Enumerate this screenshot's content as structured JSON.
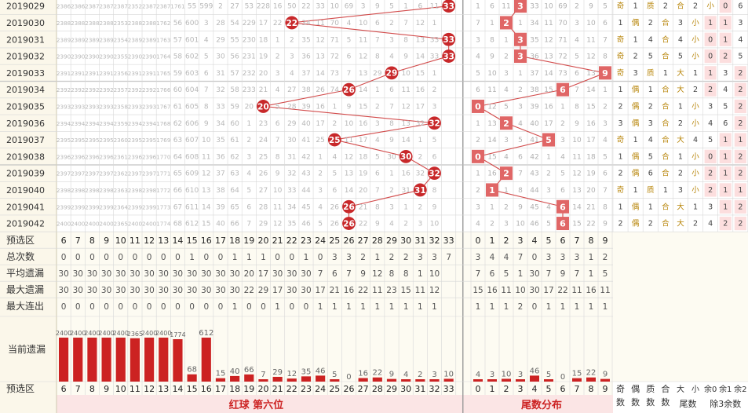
{
  "columns": {
    "red": [
      "6",
      "7",
      "8",
      "9",
      "10",
      "11",
      "12",
      "13",
      "14",
      "15",
      "16",
      "17",
      "18",
      "19",
      "20",
      "21",
      "22",
      "23",
      "24",
      "25",
      "26",
      "27",
      "28",
      "29",
      "30",
      "31",
      "32",
      "33"
    ],
    "tail": [
      "0",
      "1",
      "2",
      "3",
      "4",
      "5",
      "6",
      "7",
      "8",
      "9"
    ],
    "extra_bottom": [
      "奇数",
      "偶数",
      "质数",
      "合数",
      "大",
      "小",
      "余0",
      "余1",
      "余2"
    ],
    "extra_group_tail": "尾数",
    "extra_group_mod3": "除3余数"
  },
  "rows": [
    {
      "period": "2019029",
      "red_hit": 33,
      "tail_hit": 3,
      "red_omit": [
        "2386",
        "2386",
        "2387",
        "2387",
        "2387",
        "2352",
        "2387",
        "2387",
        "1761",
        "55",
        "599",
        "2",
        "27",
        "53",
        "228",
        "16",
        "50",
        "22",
        "33",
        "10",
        "69",
        "3",
        "9",
        "5",
        "1",
        "6",
        "11",
        "33"
      ],
      "tail_omit": [
        "1",
        "6",
        "11",
        "3",
        "33",
        "10",
        "69",
        "2",
        "9",
        "5"
      ],
      "stats": [
        "奇",
        "1",
        "质",
        "2",
        "合",
        "2",
        "小",
        "0",
        "6",
        "2"
      ]
    },
    {
      "period": "2019030",
      "red_hit": 22,
      "tail_hit": 2,
      "red_omit": [
        "2388",
        "2388",
        "2388",
        "2388",
        "2353",
        "2388",
        "2388",
        "1762",
        "56",
        "600",
        "3",
        "28",
        "54",
        "229",
        "17",
        "22",
        "1",
        "34",
        "11",
        "70",
        "4",
        "10",
        "6",
        "2",
        "7",
        "12",
        "1"
      ],
      "tail_omit": [
        "7",
        "1",
        "2",
        "1",
        "34",
        "11",
        "70",
        "3",
        "10",
        "6"
      ],
      "stats": [
        "1",
        "偶",
        "2",
        "合",
        "3",
        "小",
        "1",
        "1",
        "3"
      ]
    },
    {
      "period": "2019031",
      "red_hit": 33,
      "tail_hit": 3,
      "red_omit": [
        "2389",
        "2389",
        "2389",
        "2389",
        "2354",
        "2389",
        "2389",
        "1763",
        "57",
        "601",
        "4",
        "29",
        "55",
        "230",
        "18",
        "1",
        "2",
        "35",
        "12",
        "71",
        "5",
        "11",
        "7",
        "3",
        "8",
        "13",
        "33"
      ],
      "tail_omit": [
        "3",
        "8",
        "1",
        "3",
        "35",
        "12",
        "71",
        "4",
        "11",
        "7"
      ],
      "stats": [
        "奇",
        "1",
        "4",
        "合",
        "4",
        "小",
        "0",
        "1",
        "4"
      ]
    },
    {
      "period": "2019032",
      "red_hit": 33,
      "tail_hit": 3,
      "red_omit": [
        "2390",
        "2390",
        "2390",
        "2390",
        "2355",
        "2390",
        "2390",
        "1764",
        "58",
        "602",
        "5",
        "30",
        "56",
        "231",
        "19",
        "2",
        "3",
        "36",
        "13",
        "72",
        "6",
        "12",
        "8",
        "4",
        "9",
        "14",
        "33"
      ],
      "tail_omit": [
        "4",
        "9",
        "2",
        "3",
        "36",
        "13",
        "72",
        "5",
        "12",
        "8"
      ],
      "stats": [
        "奇",
        "2",
        "5",
        "合",
        "5",
        "小",
        "0",
        "2",
        "5"
      ]
    },
    {
      "period": "2019033",
      "red_hit": 29,
      "tail_hit": 9,
      "red_omit": [
        "2391",
        "2391",
        "2391",
        "2391",
        "2356",
        "2391",
        "2391",
        "1765",
        "59",
        "603",
        "6",
        "31",
        "57",
        "232",
        "20",
        "3",
        "4",
        "37",
        "14",
        "73",
        "7",
        "13",
        "29",
        "5",
        "10",
        "15",
        "1"
      ],
      "tail_omit": [
        "5",
        "10",
        "3",
        "1",
        "37",
        "14",
        "73",
        "6",
        "13",
        "9"
      ],
      "stats": [
        "奇",
        "3",
        "质",
        "1",
        "大",
        "1",
        "1",
        "3",
        "2"
      ]
    },
    {
      "period": "2019034",
      "red_hit": 26,
      "tail_hit": 6,
      "red_omit": [
        "2392",
        "2392",
        "2392",
        "2392",
        "2357",
        "2392",
        "2392",
        "1766",
        "60",
        "604",
        "7",
        "32",
        "58",
        "233",
        "21",
        "4",
        "27",
        "38",
        "26",
        "74",
        "8",
        "14",
        "1",
        "6",
        "11",
        "16",
        "2"
      ],
      "tail_omit": [
        "6",
        "11",
        "4",
        "2",
        "38",
        "15",
        "6",
        "7",
        "14",
        "1"
      ],
      "stats": [
        "1",
        "偶",
        "1",
        "合",
        "大",
        "2",
        "2",
        "4",
        "2"
      ]
    },
    {
      "period": "2019035",
      "red_hit": 20,
      "tail_hit": 0,
      "red_omit": [
        "2393",
        "2393",
        "2393",
        "2393",
        "2358",
        "2393",
        "2393",
        "1767",
        "61",
        "605",
        "8",
        "33",
        "59",
        "20",
        "22",
        "5",
        "28",
        "39",
        "16",
        "1",
        "9",
        "15",
        "2",
        "7",
        "12",
        "17",
        "3"
      ],
      "tail_omit": [
        "0",
        "12",
        "5",
        "3",
        "39",
        "16",
        "1",
        "8",
        "15",
        "2"
      ],
      "stats": [
        "2",
        "偶",
        "2",
        "合",
        "1",
        "小",
        "3",
        "5",
        "2"
      ]
    },
    {
      "period": "2019036",
      "red_hit": 32,
      "tail_hit": 2,
      "red_omit": [
        "2394",
        "2394",
        "2394",
        "2394",
        "2359",
        "2394",
        "2394",
        "1768",
        "62",
        "606",
        "9",
        "34",
        "60",
        "1",
        "23",
        "6",
        "29",
        "40",
        "17",
        "2",
        "10",
        "16",
        "3",
        "8",
        "13",
        "32",
        "4"
      ],
      "tail_omit": [
        "1",
        "13",
        "2",
        "4",
        "40",
        "17",
        "2",
        "9",
        "16",
        "3"
      ],
      "stats": [
        "3",
        "偶",
        "3",
        "合",
        "2",
        "小",
        "4",
        "6",
        "2"
      ]
    },
    {
      "period": "2019037",
      "red_hit": 25,
      "tail_hit": 5,
      "red_omit": [
        "2395",
        "2395",
        "2395",
        "2395",
        "2360",
        "2395",
        "2395",
        "1769",
        "63",
        "607",
        "10",
        "35",
        "61",
        "2",
        "24",
        "7",
        "30",
        "41",
        "25",
        "3",
        "11",
        "17",
        "4",
        "9",
        "14",
        "1",
        "5"
      ],
      "tail_omit": [
        "2",
        "14",
        "3",
        "5",
        "41",
        "5",
        "3",
        "10",
        "17",
        "4"
      ],
      "stats": [
        "奇",
        "1",
        "4",
        "合",
        "大",
        "4",
        "5",
        "1",
        "1"
      ]
    },
    {
      "period": "2019038",
      "red_hit": 30,
      "tail_hit": 0,
      "red_omit": [
        "2396",
        "2396",
        "2396",
        "2396",
        "2361",
        "2396",
        "2396",
        "1770",
        "64",
        "608",
        "11",
        "36",
        "62",
        "3",
        "25",
        "8",
        "31",
        "42",
        "1",
        "4",
        "12",
        "18",
        "5",
        "30",
        "15",
        "2",
        "6"
      ],
      "tail_omit": [
        "0",
        "15",
        "4",
        "6",
        "42",
        "1",
        "4",
        "11",
        "18",
        "5"
      ],
      "stats": [
        "1",
        "偶",
        "5",
        "合",
        "1",
        "小",
        "0",
        "1",
        "2"
      ]
    },
    {
      "period": "2019039",
      "red_hit": 32,
      "tail_hit": 2,
      "red_omit": [
        "2397",
        "2397",
        "2397",
        "2397",
        "2362",
        "2397",
        "2397",
        "1771",
        "65",
        "609",
        "12",
        "37",
        "63",
        "4",
        "26",
        "9",
        "32",
        "43",
        "2",
        "5",
        "13",
        "19",
        "6",
        "1",
        "16",
        "32",
        "7"
      ],
      "tail_omit": [
        "1",
        "16",
        "2",
        "7",
        "43",
        "2",
        "5",
        "12",
        "19",
        "6"
      ],
      "stats": [
        "2",
        "偶",
        "6",
        "合",
        "2",
        "小",
        "2",
        "1",
        "2"
      ]
    },
    {
      "period": "2019040",
      "red_hit": 31,
      "tail_hit": 1,
      "red_omit": [
        "2398",
        "2398",
        "2398",
        "2398",
        "2363",
        "2398",
        "2398",
        "1772",
        "66",
        "610",
        "13",
        "38",
        "64",
        "5",
        "27",
        "10",
        "33",
        "44",
        "3",
        "6",
        "14",
        "20",
        "7",
        "2",
        "31",
        "1",
        "8"
      ],
      "tail_omit": [
        "2",
        "1",
        "1",
        "8",
        "44",
        "3",
        "6",
        "13",
        "20",
        "7"
      ],
      "stats": [
        "奇",
        "1",
        "质",
        "1",
        "3",
        "小",
        "2",
        "1",
        "1"
      ]
    },
    {
      "period": "2019041",
      "red_hit": 26,
      "tail_hit": 6,
      "red_omit": [
        "2399",
        "2399",
        "2399",
        "2399",
        "2364",
        "2399",
        "2399",
        "1773",
        "67",
        "611",
        "14",
        "39",
        "65",
        "6",
        "28",
        "11",
        "34",
        "45",
        "4",
        "26",
        "15",
        "21",
        "8",
        "3",
        "1",
        "2",
        "9"
      ],
      "tail_omit": [
        "3",
        "1",
        "2",
        "9",
        "45",
        "4",
        "6",
        "14",
        "21",
        "8"
      ],
      "stats": [
        "1",
        "偶",
        "1",
        "合",
        "大",
        "1",
        "3",
        "1",
        "2"
      ]
    },
    {
      "period": "2019042",
      "red_hit": 26,
      "tail_hit": 6,
      "red_omit": [
        "2400",
        "2400",
        "2400",
        "2400",
        "2365",
        "2400",
        "2400",
        "1774",
        "68",
        "612",
        "15",
        "40",
        "66",
        "7",
        "29",
        "12",
        "35",
        "46",
        "5",
        "26",
        "16",
        "22",
        "9",
        "4",
        "2",
        "3",
        "10"
      ],
      "tail_omit": [
        "4",
        "2",
        "3",
        "10",
        "46",
        "5",
        "6",
        "15",
        "22",
        "9"
      ],
      "stats": [
        "2",
        "偶",
        "2",
        "合",
        "大",
        "2",
        "4",
        "2",
        "2"
      ]
    }
  ],
  "stat_rows": [
    {
      "label": "预选区",
      "values_kind": "header"
    },
    {
      "label": "总次数",
      "red": [
        "0",
        "0",
        "0",
        "0",
        "0",
        "0",
        "0",
        "0",
        "0",
        "1",
        "0",
        "0",
        "1",
        "1",
        "1",
        "0",
        "0",
        "1",
        "0",
        "3",
        "3",
        "2",
        "1",
        "2",
        "2",
        "3",
        "3",
        "7"
      ],
      "tail": [
        "3",
        "4",
        "4",
        "7",
        "0",
        "3",
        "3",
        "3",
        "1",
        "2"
      ]
    },
    {
      "label": "平均遗漏",
      "red": [
        "30",
        "30",
        "30",
        "30",
        "30",
        "30",
        "30",
        "30",
        "30",
        "30",
        "30",
        "30",
        "30",
        "20",
        "17",
        "30",
        "30",
        "30",
        "7",
        "6",
        "7",
        "9",
        "12",
        "8",
        "8",
        "1",
        "10",
        ""
      ],
      "tail": [
        "7",
        "6",
        "5",
        "1",
        "30",
        "7",
        "9",
        "7",
        "1",
        "5"
      ]
    },
    {
      "label": "最大遗漏",
      "red": [
        "30",
        "30",
        "30",
        "30",
        "30",
        "30",
        "30",
        "30",
        "30",
        "30",
        "30",
        "30",
        "30",
        "22",
        "29",
        "17",
        "30",
        "30",
        "17",
        "21",
        "16",
        "22",
        "11",
        "23",
        "15",
        "11",
        "12",
        ""
      ],
      "tail": [
        "15",
        "16",
        "11",
        "10",
        "30",
        "17",
        "22",
        "11",
        "16",
        "11"
      ]
    },
    {
      "label": "最大连出",
      "red": [
        "0",
        "0",
        "0",
        "0",
        "0",
        "0",
        "0",
        "0",
        "0",
        "0",
        "0",
        "0",
        "1",
        "0",
        "0",
        "1",
        "0",
        "0",
        "1",
        "1",
        "1",
        "1",
        "1",
        "1",
        "1",
        "1",
        "1",
        ""
      ],
      "tail": [
        "1",
        "1",
        "1",
        "2",
        "0",
        "1",
        "1",
        "1",
        "1",
        "1"
      ]
    }
  ],
  "current_omission_label": "当前遗漏",
  "chart_data": {
    "type": "bar",
    "title": "",
    "xlabel": "预选区",
    "ylabel": "当前遗漏",
    "categories": [
      "6",
      "7",
      "8",
      "9",
      "10",
      "11",
      "12",
      "13",
      "14",
      "15",
      "16",
      "17",
      "18",
      "19",
      "20",
      "21",
      "22",
      "23",
      "24",
      "25",
      "26",
      "27",
      "28",
      "29",
      "30",
      "31",
      "32",
      "33",
      "0",
      "1",
      "2",
      "3",
      "4",
      "5",
      "6",
      "7",
      "8",
      "9"
    ],
    "values": [
      2400,
      2400,
      2400,
      2400,
      2400,
      2365,
      2400,
      2400,
      1774,
      68,
      612,
      15,
      40,
      66,
      7,
      29,
      12,
      35,
      46,
      5,
      0,
      16,
      22,
      9,
      4,
      2,
      3,
      10,
      4,
      3,
      10,
      3,
      46,
      5,
      0,
      15,
      22,
      9
    ],
    "label_values": [
      "2400",
      "2400",
      "2400",
      "2400",
      "2400",
      "2365",
      "2400",
      "2400",
      "1774",
      "68",
      "612",
      "15",
      "40",
      "66",
      "7",
      "29",
      "12",
      "35",
      "46",
      "5",
      "0",
      "16",
      "22",
      "9",
      "4",
      "2",
      "3",
      "10",
      "4",
      "3",
      "10",
      "3",
      "46",
      "5",
      "0",
      "15",
      "22",
      "9"
    ],
    "bar_color": "#cc2222"
  },
  "footer": {
    "preselect_label": "预选区",
    "red_section_title": "红球 第六位",
    "tail_section_title": "尾数分布"
  },
  "colors": {
    "accent_red": "#cc2222",
    "hit_ball": "#c8282a",
    "tail_square": "#e06666",
    "grid_line": "#d8d8d8",
    "light_cell": "#f3f3f3",
    "footer_bg": "#fbe5e5",
    "stat_bg": "#fdfbf2"
  }
}
